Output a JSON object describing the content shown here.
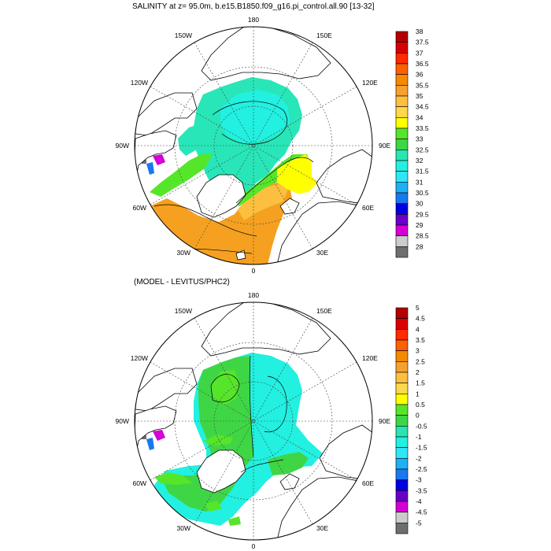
{
  "top_panel": {
    "title": "SALINITY at z=  95.0m, b.e15.B1850.f09_g16.pi_control.all.90 [13-32]",
    "longitude_labels": [
      "180",
      "150E",
      "120E",
      "90E",
      "60E",
      "30E",
      "0",
      "30W",
      "60W",
      "90W",
      "120W",
      "150W"
    ],
    "colorbar": {
      "labels": [
        "38",
        "37.5",
        "37",
        "36.5",
        "36",
        "35.5",
        "35",
        "34.5",
        "34",
        "33.5",
        "33",
        "32.5",
        "32",
        "31.5",
        "31",
        "30.5",
        "30",
        "29.5",
        "29",
        "28.5",
        "28"
      ],
      "colors": [
        "#b30000",
        "#d90000",
        "#ff2a00",
        "#ff6000",
        "#f58a00",
        "#f7a030",
        "#fcbf40",
        "#ffd84a",
        "#ffff00",
        "#55e62a",
        "#3fd645",
        "#27e6b0",
        "#22f0e0",
        "#2ee6f5",
        "#1cb0f5",
        "#1a78ef",
        "#0000e0",
        "#6a00c8",
        "#d400d4",
        "#cccccc",
        "#6e6e6e"
      ]
    }
  },
  "bottom_panel": {
    "title": "(MODEL - LEVITUS/PHC2)",
    "longitude_labels": [
      "180",
      "150E",
      "120E",
      "90E",
      "60E",
      "30E",
      "0",
      "30W",
      "60W",
      "90W",
      "120W",
      "150W"
    ],
    "colorbar": {
      "labels": [
        "5",
        "4.5",
        "4",
        "3.5",
        "3",
        "2.5",
        "2",
        "1.5",
        "1",
        "0.5",
        "0",
        "-0.5",
        "-1",
        "-1.5",
        "-2",
        "-2.5",
        "-3",
        "-3.5",
        "-4",
        "-4.5",
        "-5"
      ],
      "colors": [
        "#b30000",
        "#d90000",
        "#ff2a00",
        "#ff6000",
        "#f58a00",
        "#f7a030",
        "#fcbf40",
        "#ffd84a",
        "#ffff00",
        "#55e62a",
        "#3fd645",
        "#27e6b0",
        "#22f0e0",
        "#2ee6f5",
        "#1cb0f5",
        "#1a78ef",
        "#0000e0",
        "#6a00c8",
        "#d400d4",
        "#cccccc",
        "#6e6e6e"
      ]
    }
  },
  "colors": {
    "salinity_atlantic": "#f5a020",
    "salinity_arctic": "#28e6b8",
    "salinity_green": "#55e62a",
    "salinity_yellow": "#ffff00",
    "diff_green": "#3fd645",
    "diff_cyan": "#22f0e0",
    "diff_bright_green": "#55e62a",
    "land": "#ffffff",
    "coastline": "#000000"
  }
}
